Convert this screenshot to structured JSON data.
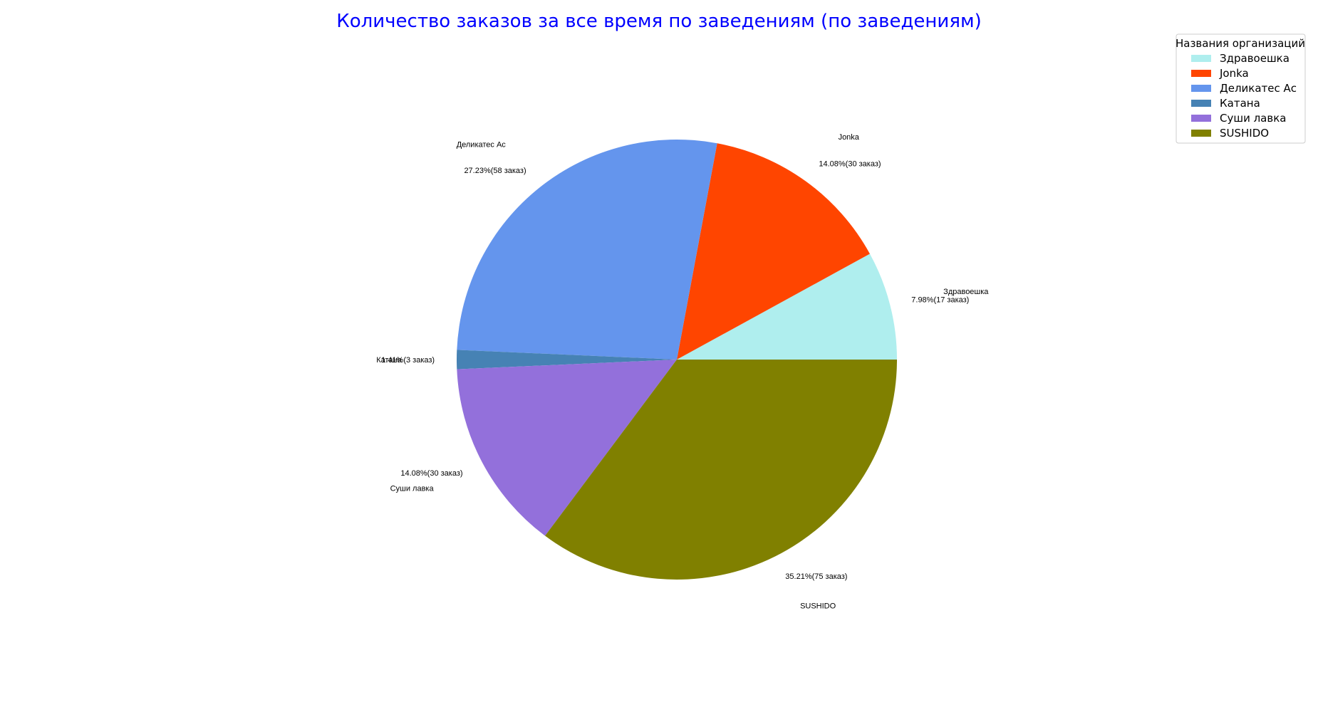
{
  "chart_data": {
    "type": "pie",
    "title": "Количество заказов за все время по заведениям (по заведениям)",
    "title_color": "#0000ff",
    "start_angle": 0,
    "direction": "counterclockwise",
    "legend": {
      "title": "Названия организаций",
      "position": "top-right"
    },
    "slices": [
      {
        "label": "Здравоешка",
        "value": 17,
        "pct_label": "7.98%(17 заказ)",
        "color": "#afeeee"
      },
      {
        "label": "Jonka",
        "value": 30,
        "pct_label": "14.08%(30 заказ)",
        "color": "#ff4500"
      },
      {
        "label": "Деликатес Ас",
        "value": 58,
        "pct_label": "27.23%(58 заказ)",
        "color": "#6495ed"
      },
      {
        "label": "Катана",
        "value": 3,
        "pct_label": "1.41%(3 заказ)",
        "color": "#4682b4"
      },
      {
        "label": "Суши лавка",
        "value": 30,
        "pct_label": "14.08%(30 заказ)",
        "color": "#9370db"
      },
      {
        "label": "SUSHIDO",
        "value": 75,
        "pct_label": "35.21%(75 заказ)",
        "color": "#808000"
      }
    ]
  }
}
